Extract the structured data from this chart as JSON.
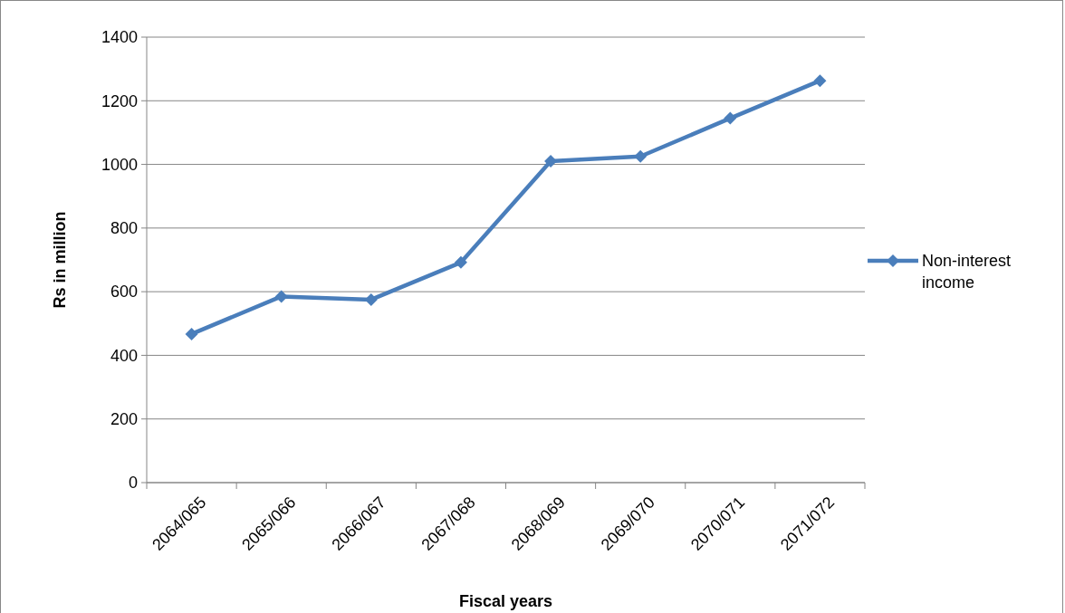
{
  "chart_data": {
    "type": "line",
    "xlabel": "Fiscal years",
    "ylabel": "Rs in million",
    "categories": [
      "2064/065",
      "2065/066",
      "2066/067",
      "2067/068",
      "2068/069",
      "2069/070",
      "2070/071",
      "2071/072"
    ],
    "series": [
      {
        "name": "Non-interest income",
        "color": "#4a7ebb",
        "values": [
          467,
          585,
          575,
          692,
          1010,
          1025,
          1145,
          1263
        ]
      }
    ],
    "ylim": [
      0,
      1400
    ],
    "yticks": [
      0,
      200,
      400,
      600,
      800,
      1000,
      1200,
      1400
    ],
    "grid": "y",
    "legend": "right",
    "marker": "diamond",
    "line_style": "solid"
  }
}
